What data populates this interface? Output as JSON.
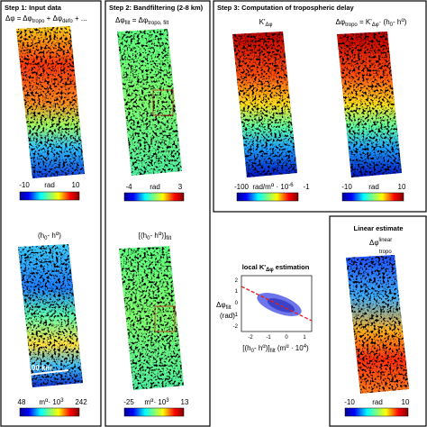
{
  "step1": {
    "title": "Step 1: Input data",
    "formula": [
      "Δφ = Δφ",
      "tropo",
      " + Δφ",
      "defo",
      " + ..."
    ],
    "colorbar1": {
      "min": "-10",
      "unit": "rad",
      "max": "10"
    },
    "label2": [
      "(h",
      "0",
      "- h",
      "α",
      ")"
    ],
    "scale": "100 km",
    "colorbar2": {
      "min": "48",
      "unit": [
        "m",
        "α",
        "· 10",
        "3"
      ],
      "max": "242"
    }
  },
  "step2": {
    "title": "Step 2: Bandfiltering (2-8 km)",
    "formula": [
      "Δφ",
      "filt",
      " = Δφ",
      "tropo, filt"
    ],
    "colorbar1": {
      "min": "-4",
      "unit": "rad",
      "max": "3"
    },
    "label2": [
      "[(h",
      "0",
      "- h",
      "α",
      ")]",
      "filt"
    ],
    "colorbar2": {
      "min": "-25",
      "unit": [
        "m",
        "α",
        "· 10",
        "3"
      ],
      "max": "13"
    }
  },
  "step3": {
    "title": "Step 3: Computation of tropospheric delay",
    "label1": [
      "K'",
      "Δφ"
    ],
    "label2": [
      "Δφ",
      "tropo",
      " = K'",
      "Δφ",
      "· (h",
      "0",
      "- h",
      "α",
      ")"
    ],
    "colorbar1": {
      "min": "-100",
      "unit": [
        "rad/m",
        "α",
        " · 10",
        "-6"
      ],
      "max": "-1"
    },
    "colorbar2": {
      "min": "-10",
      "unit": "rad",
      "max": "10"
    }
  },
  "linear": {
    "title": "Linear estimate",
    "label": [
      "Δφ",
      "linear",
      "tropo"
    ],
    "colorbar": {
      "min": "-10",
      "unit": "rad",
      "max": "10"
    }
  },
  "scatter": {
    "title": [
      "local K'",
      "Δφ",
      " estimation"
    ],
    "ylabel": [
      "Δφ",
      "filt",
      "(rad)"
    ],
    "xlabel": [
      "[(h",
      "0",
      "- h",
      "α",
      ")]",
      "filt",
      " (m",
      "α",
      " · 10",
      "4",
      ")"
    ],
    "yticks": [
      "2",
      "1",
      "0",
      "-1",
      "-2"
    ],
    "xticks": [
      "-2",
      "-1",
      "0",
      "1"
    ]
  }
}
